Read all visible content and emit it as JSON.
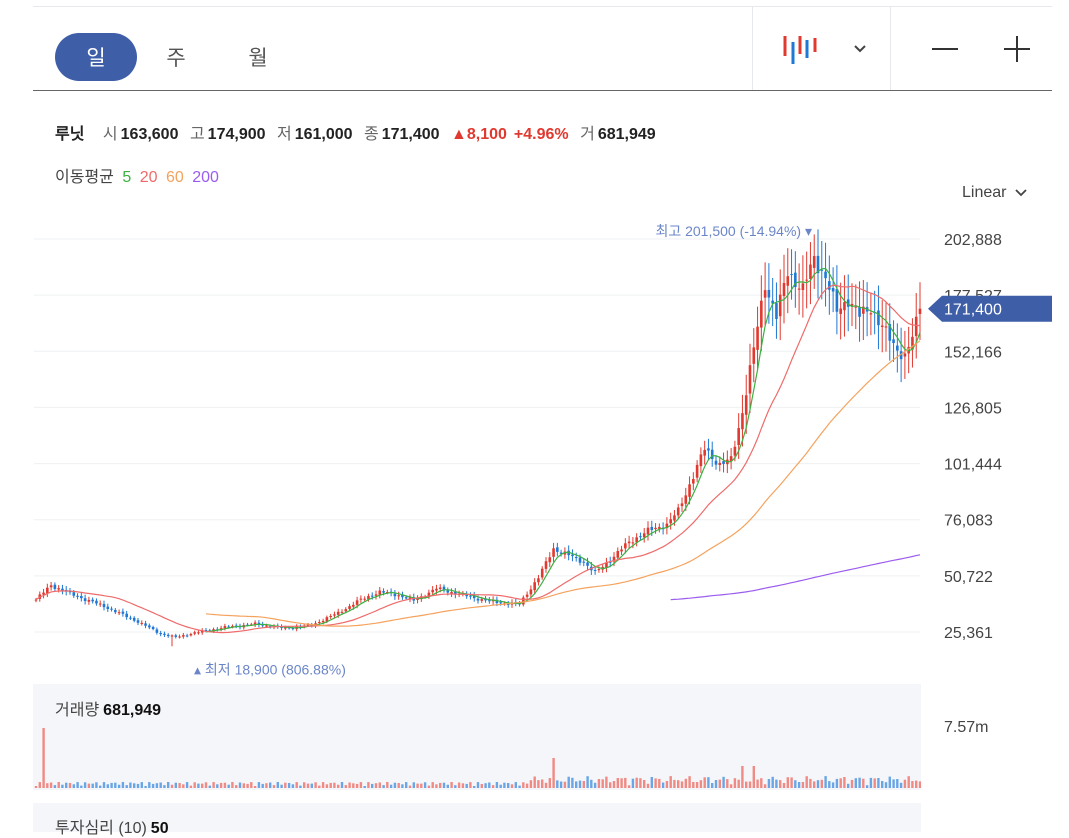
{
  "periods": [
    "일",
    "주",
    "월"
  ],
  "active_period": 0,
  "stock": {
    "name": "루닛",
    "open_label": "시",
    "open": "163,600",
    "high_label": "고",
    "high": "174,900",
    "low_label": "저",
    "low": "161,000",
    "close_label": "종",
    "close": "171,400",
    "change": "▲8,100",
    "change_pct": "+4.96%",
    "volume_label": "거",
    "volume": "681,949"
  },
  "ma": {
    "label": "이동평균",
    "p5": "5",
    "p20": "20",
    "p60": "60",
    "p200": "200"
  },
  "scale_mode": "Linear",
  "volume_panel": {
    "label": "거래량",
    "value": "681,949",
    "max_label": "7.57m"
  },
  "sentiment": {
    "label": "투자심리",
    "period": "(10)",
    "value": "50"
  },
  "colors": {
    "accent": "#3f5ea8",
    "up": "#e0392f",
    "down": "#1e78d4",
    "ma5": "#3cb043",
    "ma20": "#ef6b6b",
    "ma60": "#f5a25d",
    "ma200": "#9b5cf0"
  },
  "chart_data": {
    "type": "candlestick",
    "y_ticks": [
      "202,888",
      "177,527",
      "152,166",
      "126,805",
      "101,444",
      "76,083",
      "50,722",
      "25,361"
    ],
    "ylim": [
      25361,
      202888
    ],
    "current_price_label": "171,400",
    "current_price": 171400,
    "high_marker": {
      "label": "최고",
      "value": "201,500 (-14.94%)",
      "price": 201500
    },
    "low_marker": {
      "label": "최저",
      "value": "18,900 (806.88%)",
      "price": 18900
    },
    "anchors": [
      [
        0,
        40000
      ],
      [
        4,
        46500
      ],
      [
        10,
        42000
      ],
      [
        18,
        37000
      ],
      [
        27,
        30000
      ],
      [
        33,
        24500
      ],
      [
        37,
        23000
      ],
      [
        42,
        25000
      ],
      [
        50,
        27500
      ],
      [
        58,
        29000
      ],
      [
        66,
        27000
      ],
      [
        73,
        28500
      ],
      [
        80,
        34000
      ],
      [
        86,
        40000
      ],
      [
        91,
        43500
      ],
      [
        96,
        42000
      ],
      [
        100,
        39500
      ],
      [
        106,
        45000
      ],
      [
        112,
        42500
      ],
      [
        118,
        40000
      ],
      [
        123,
        38500
      ],
      [
        128,
        38000
      ],
      [
        133,
        50000
      ],
      [
        137,
        63000
      ],
      [
        141,
        60000
      ],
      [
        145,
        57000
      ],
      [
        148,
        52000
      ],
      [
        152,
        58000
      ],
      [
        157,
        66000
      ],
      [
        162,
        71000
      ],
      [
        167,
        74000
      ],
      [
        170,
        80000
      ],
      [
        173,
        92000
      ],
      [
        177,
        108000
      ],
      [
        181,
        101000
      ],
      [
        184,
        103000
      ],
      [
        187,
        125000
      ],
      [
        190,
        153000
      ],
      [
        193,
        183000
      ],
      [
        196,
        168000
      ],
      [
        199,
        188000
      ],
      [
        203,
        180000
      ],
      [
        206,
        194000
      ],
      [
        209,
        186000
      ],
      [
        212,
        170000
      ],
      [
        215,
        176000
      ],
      [
        218,
        168000
      ],
      [
        221,
        172000
      ],
      [
        224,
        163000
      ],
      [
        227,
        155000
      ],
      [
        230,
        150000
      ],
      [
        232,
        158000
      ],
      [
        234,
        171400
      ]
    ],
    "series": [
      {
        "name": "5",
        "period": 5,
        "start": 45
      },
      {
        "name": "20",
        "period": 20,
        "start": 0
      },
      {
        "name": "60",
        "period": 60,
        "start": 45
      },
      {
        "name": "200",
        "period": 200,
        "start": 168
      }
    ]
  }
}
